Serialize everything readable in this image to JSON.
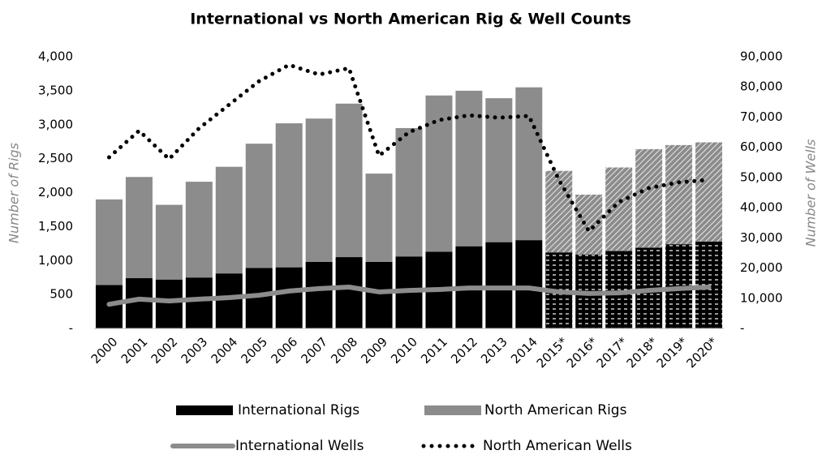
{
  "chart_data": {
    "type": "bar",
    "title": "International vs North American Rig & Well Counts",
    "y_label": "Number of Rigs",
    "y2_label": "Number of Wells",
    "categories": [
      "2000",
      "2001",
      "2002",
      "2003",
      "2004",
      "2005",
      "2006",
      "2007",
      "2008",
      "2009",
      "2010",
      "2011",
      "2012",
      "2013",
      "2014",
      "2015*",
      "2016*",
      "2017*",
      "2018*",
      "2019*",
      "2020*"
    ],
    "stacked": true,
    "series": [
      {
        "name": "International Rigs",
        "type": "bar",
        "color": "#000000",
        "values": [
          640,
          740,
          720,
          750,
          810,
          890,
          900,
          980,
          1050,
          980,
          1060,
          1130,
          1210,
          1270,
          1300,
          1120,
          1090,
          1140,
          1190,
          1240,
          1280
        ]
      },
      {
        "name": "North American Rigs",
        "type": "bar",
        "color": "#8c8c8c",
        "values": [
          1260,
          1490,
          1100,
          1410,
          1570,
          1830,
          2120,
          2110,
          2260,
          1300,
          1890,
          2300,
          2290,
          2120,
          2250,
          1200,
          880,
          1230,
          1450,
          1460,
          1460
        ]
      },
      {
        "name": "International Wells",
        "type": "line",
        "axis": "y2",
        "color": "#8c8c8c",
        "values": [
          8000,
          9700,
          9100,
          9700,
          10200,
          11000,
          12400,
          13200,
          13700,
          12100,
          12600,
          12900,
          13400,
          13400,
          13400,
          12100,
          11600,
          11800,
          12600,
          13200,
          13700
        ]
      },
      {
        "name": "North American Wells",
        "type": "line",
        "axis": "y2",
        "color": "#000000",
        "dotted": true,
        "values": [
          56700,
          65500,
          56100,
          66300,
          74100,
          81900,
          87300,
          84100,
          86200,
          57200,
          65000,
          69000,
          70600,
          69800,
          70400,
          49200,
          32200,
          41900,
          46500,
          48400,
          49200
        ]
      }
    ],
    "ylim": [
      0,
      4000
    ],
    "yticks": [
      {
        "value": 0,
        "label": "-"
      },
      500,
      {
        "value": 1000,
        "label": "1,000"
      },
      {
        "value": 1500,
        "label": "1,500"
      },
      {
        "value": 2000,
        "label": "2,000"
      },
      {
        "value": 2500,
        "label": "2,500"
      },
      {
        "value": 3000,
        "label": "3,000"
      },
      {
        "value": 3500,
        "label": "3,500"
      },
      {
        "value": 4000,
        "label": "4,000"
      }
    ],
    "y2lim": [
      0,
      90000
    ],
    "y2ticks": [
      {
        "value": 0,
        "label": "-"
      },
      {
        "value": 10000,
        "label": "10,000"
      },
      {
        "value": 20000,
        "label": "20,000"
      },
      {
        "value": 30000,
        "label": "30,000"
      },
      {
        "value": 40000,
        "label": "40,000"
      },
      {
        "value": 50000,
        "label": "50,000"
      },
      {
        "value": 60000,
        "label": "60,000"
      },
      {
        "value": 70000,
        "label": "70,000"
      },
      {
        "value": 80000,
        "label": "80,000"
      },
      {
        "value": 90000,
        "label": "90,000"
      }
    ],
    "legend": "bottom"
  }
}
